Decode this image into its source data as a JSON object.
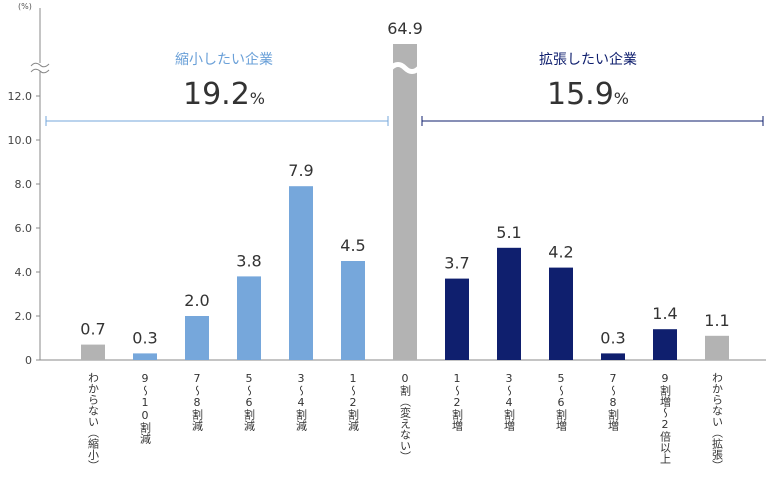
{
  "chart_data": {
    "type": "bar",
    "unit_label": "(%)",
    "ylim": [
      0,
      13
    ],
    "yticks": [
      "0",
      "2.0",
      "4.0",
      "6.0",
      "8.0",
      "10.0",
      "12.0"
    ],
    "ytick_values": [
      0,
      2,
      4,
      6,
      8,
      10,
      12
    ],
    "axis_break": true,
    "categories": [
      "わからない（縮小）",
      "9〜10割減",
      "7〜8割減",
      "5〜6割減",
      "3〜4割減",
      "1〜2割減",
      "0割（変えない）",
      "1〜2割増",
      "3〜4割増",
      "5〜6割増",
      "7〜8割増",
      "9割増〜2倍以上",
      "わからない（拡張）"
    ],
    "values": [
      0.7,
      0.3,
      2.0,
      3.8,
      7.9,
      4.5,
      64.9,
      3.7,
      5.1,
      4.2,
      0.3,
      1.4,
      1.1
    ],
    "value_labels": [
      "0.7",
      "0.3",
      "2.0",
      "3.8",
      "7.9",
      "4.5",
      "64.9",
      "3.7",
      "5.1",
      "4.2",
      "0.3",
      "1.4",
      "1.1"
    ],
    "groups": [
      "shrink-unknown",
      "shrink",
      "shrink",
      "shrink",
      "shrink",
      "shrink",
      "neutral",
      "expand",
      "expand",
      "expand",
      "expand",
      "expand",
      "expand-unknown"
    ],
    "colors": {
      "shrink": "#76a7db",
      "expand": "#0f1f6e",
      "neutral": "#b3b3b3",
      "unknown": "#b3b3b3",
      "shrink_text": "#6aa0d8",
      "expand_text": "#0f1f6e"
    },
    "annotations": {
      "shrink": {
        "label": "縮小したい企業",
        "value": "19.2",
        "unit": "%"
      },
      "expand": {
        "label": "拡張したい企業",
        "value": "15.9",
        "unit": "%"
      }
    },
    "grid": false,
    "legend": "none"
  }
}
